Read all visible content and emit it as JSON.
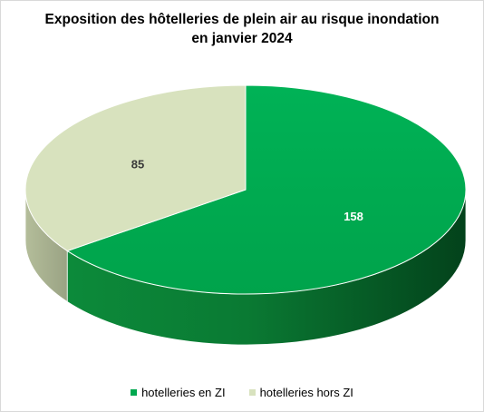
{
  "chart_data": {
    "type": "pie",
    "title_line1": "Exposition des hôtelleries de plein air au risque inondation",
    "title_line2": "en janvier 2024",
    "categories": [
      "hotelleries en ZI",
      "hotelleries hors ZI"
    ],
    "values": [
      158,
      85
    ],
    "colors": [
      "#00A84F",
      "#D8E2BE"
    ],
    "data_labels": [
      "158",
      "85"
    ],
    "legend_position": "bottom",
    "style": "3d"
  }
}
